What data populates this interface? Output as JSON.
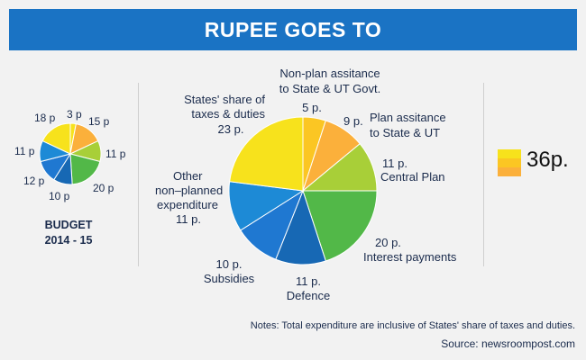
{
  "chart_data": [
    {
      "type": "pie",
      "title": "BUDGET 2014 - 15",
      "unit": "p",
      "labels": [
        "3 p",
        "15 p",
        "11 p",
        "20 p",
        "10 p",
        "12 p",
        "11 p",
        "18 p"
      ],
      "values": [
        3,
        15,
        11,
        20,
        10,
        12,
        11,
        18
      ],
      "colors": [
        "#f7e21c",
        "#fbb03b",
        "#a8cf38",
        "#52b848",
        "#1768b4",
        "#1f78d1",
        "#1d8ad6",
        "#f7e21c"
      ]
    },
    {
      "type": "pie",
      "title": "RUPEE GOES TO",
      "categories": [
        "Non-plan assitance to State & UT Govt.",
        "Plan assitance to State & UT",
        "Central Plan",
        "Interest payments",
        "Defence",
        "Subsidies",
        "Other non–planned expenditure",
        "States' share of taxes & duties"
      ],
      "values": [
        5,
        9,
        11,
        20,
        11,
        10,
        11,
        23
      ],
      "labels": [
        "5 p.",
        "9 p.",
        "11 p.",
        "20 p.",
        "11 p.",
        "10 p.",
        "11 p.",
        "23 p."
      ],
      "colors": [
        "#fbc623",
        "#fbb03b",
        "#a8cf38",
        "#52b848",
        "#1768b4",
        "#1f78d1",
        "#1d8ad6",
        "#f7e21c"
      ]
    }
  ],
  "header": {
    "title": "RUPEE GOES TO"
  },
  "small_chart": {
    "caption_line1": "BUDGET",
    "caption_line2": "2014 - 15"
  },
  "legend": {
    "value": "36p.",
    "colors": [
      "#f7e21c",
      "#fbc623",
      "#fbb03b"
    ]
  },
  "footer": {
    "notes": "Notes: Total expenditure are inclusive of States' share of taxes and duties.",
    "source": "Source: newsroompost.com"
  }
}
